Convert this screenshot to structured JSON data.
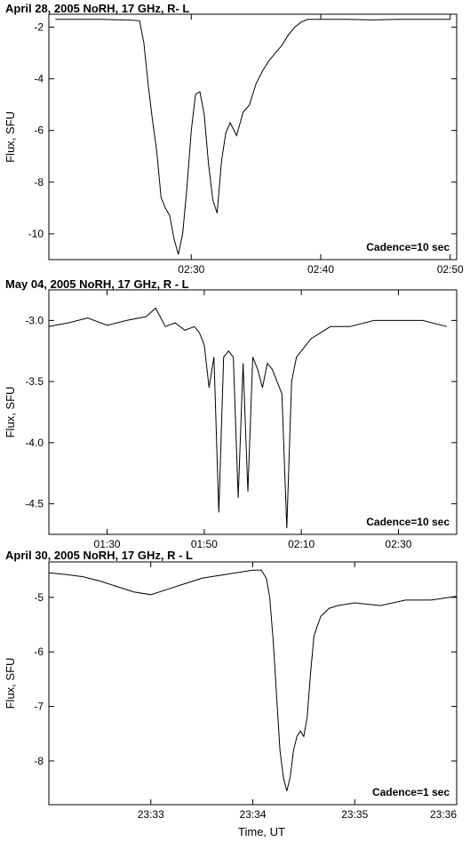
{
  "figure": {
    "xlabel": "Time, UT"
  },
  "chart_data": [
    {
      "type": "line",
      "title": "April 28, 2005 NoRH, 17 GHz, R- L",
      "ylabel": "Flux, SFU",
      "xlabel": "",
      "annotation": "Cadence=10 sec",
      "ylim": [
        -11.0,
        -1.5
      ],
      "xlim": [
        "02:19:00",
        "02:50:30"
      ],
      "yticks": [
        -2,
        -4,
        -6,
        -8,
        -10
      ],
      "ytick_labels": [
        "-2",
        "-4",
        "-6",
        "-8",
        "-10"
      ],
      "xticks": [
        "02:30:00",
        "02:40:00",
        "02:50:00"
      ],
      "xtick_labels": [
        "02:30",
        "02:40",
        "02:50"
      ],
      "grid": false,
      "line_color": "#000000",
      "series": [
        {
          "x": [
            "02:19:30",
            "02:21:00",
            "02:23:00",
            "02:25:00",
            "02:26:00",
            "02:26:20",
            "02:26:40",
            "02:27:00",
            "02:27:20",
            "02:27:40",
            "02:28:00",
            "02:28:20",
            "02:28:40",
            "02:29:00",
            "02:29:20",
            "02:29:40",
            "02:30:00",
            "02:30:20",
            "02:30:40",
            "02:31:00",
            "02:31:20",
            "02:31:40",
            "02:32:00",
            "02:32:20",
            "02:32:40",
            "02:33:00",
            "02:33:30",
            "02:34:00",
            "02:34:30",
            "02:35:00",
            "02:35:30",
            "02:36:00",
            "02:36:30",
            "02:37:00",
            "02:37:30",
            "02:38:00",
            "02:38:30",
            "02:39:00",
            "02:40:00",
            "02:42:00",
            "02:44:00",
            "02:46:00",
            "02:48:00",
            "02:50:00"
          ],
          "y": [
            -1.7,
            -1.7,
            -1.7,
            -1.72,
            -1.75,
            -2.6,
            -4.2,
            -5.6,
            -6.8,
            -8.6,
            -9.0,
            -9.3,
            -10.2,
            -10.8,
            -10.0,
            -8.2,
            -6.0,
            -4.6,
            -4.5,
            -5.4,
            -7.3,
            -8.7,
            -9.2,
            -7.2,
            -6.1,
            -5.7,
            -6.2,
            -5.3,
            -5.0,
            -4.2,
            -3.7,
            -3.3,
            -3.0,
            -2.7,
            -2.3,
            -2.0,
            -1.8,
            -1.7,
            -1.7,
            -1.7,
            -1.72,
            -1.7,
            -1.7,
            -1.7
          ]
        }
      ]
    },
    {
      "type": "line",
      "title": "May 04, 2005 NoRH, 17 GHz, R - L",
      "ylabel": "Flux, SFU",
      "xlabel": "",
      "annotation": "Cadence=10 sec",
      "ylim": [
        -4.75,
        -2.75
      ],
      "xlim": [
        "01:18:00",
        "02:42:00"
      ],
      "yticks": [
        -3.0,
        -3.5,
        -4.0,
        -4.5
      ],
      "ytick_labels": [
        "-3.0",
        "-3.5",
        "-4.0",
        "-4.5"
      ],
      "xticks": [
        "01:30:00",
        "01:50:00",
        "02:10:00",
        "02:30:00"
      ],
      "xtick_labels": [
        "01:30",
        "01:50",
        "02:10",
        "02:30"
      ],
      "grid": false,
      "line_color": "#000000",
      "series": [
        {
          "x": [
            "01:18:00",
            "01:22:00",
            "01:26:00",
            "01:30:00",
            "01:34:00",
            "01:38:00",
            "01:40:00",
            "01:42:00",
            "01:44:00",
            "01:46:00",
            "01:48:00",
            "01:49:00",
            "01:50:00",
            "01:51:00",
            "01:52:00",
            "01:53:00",
            "01:54:00",
            "01:55:00",
            "01:56:00",
            "01:57:00",
            "01:58:00",
            "01:59:00",
            "02:00:00",
            "02:01:00",
            "02:02:00",
            "02:03:00",
            "02:04:00",
            "02:05:00",
            "02:06:00",
            "02:07:00",
            "02:08:00",
            "02:09:00",
            "02:10:00",
            "02:12:00",
            "02:14:00",
            "02:16:00",
            "02:20:00",
            "02:25:00",
            "02:30:00",
            "02:35:00",
            "02:40:00"
          ],
          "y": [
            -3.05,
            -3.02,
            -2.98,
            -3.04,
            -3.0,
            -2.97,
            -2.9,
            -3.05,
            -3.02,
            -3.08,
            -3.05,
            -3.1,
            -3.2,
            -3.55,
            -3.3,
            -4.57,
            -3.3,
            -3.25,
            -3.3,
            -4.45,
            -3.35,
            -4.4,
            -3.3,
            -3.4,
            -3.55,
            -3.35,
            -3.4,
            -3.5,
            -3.6,
            -4.7,
            -3.5,
            -3.3,
            -3.25,
            -3.15,
            -3.1,
            -3.05,
            -3.05,
            -3.0,
            -3.0,
            -3.0,
            -3.05
          ]
        }
      ]
    },
    {
      "type": "line",
      "title": "April 30, 2005 NoRH, 17 GHz, R - L",
      "ylabel": "Flux, SFU",
      "xlabel": "Time, UT",
      "annotation": "Cadence=1 sec",
      "ylim": [
        -8.8,
        -4.35
      ],
      "xlim": [
        "23:32:00",
        "23:36:00"
      ],
      "yticks": [
        -5,
        -6,
        -7,
        -8
      ],
      "ytick_labels": [
        "-5",
        "-6",
        "-7",
        "-8"
      ],
      "xticks": [
        "23:33:00",
        "23:34:00",
        "23:35:00",
        "23:36:00"
      ],
      "xtick_labels": [
        "23:33",
        "23:34",
        "23:35",
        "23:36"
      ],
      "grid": false,
      "line_color": "#000000",
      "series": [
        {
          "x": [
            "23:32:00",
            "23:32:10",
            "23:32:20",
            "23:32:30",
            "23:32:40",
            "23:32:50",
            "23:33:00",
            "23:33:10",
            "23:33:20",
            "23:33:30",
            "23:33:40",
            "23:33:50",
            "23:34:00",
            "23:34:05",
            "23:34:08",
            "23:34:10",
            "23:34:12",
            "23:34:14",
            "23:34:16",
            "23:34:18",
            "23:34:20",
            "23:34:22",
            "23:34:24",
            "23:34:26",
            "23:34:28",
            "23:34:30",
            "23:34:32",
            "23:34:34",
            "23:34:36",
            "23:34:40",
            "23:34:45",
            "23:34:50",
            "23:35:00",
            "23:35:15",
            "23:35:30",
            "23:35:45",
            "23:36:00"
          ],
          "y": [
            -4.55,
            -4.58,
            -4.62,
            -4.7,
            -4.8,
            -4.9,
            -4.95,
            -4.85,
            -4.75,
            -4.65,
            -4.6,
            -4.55,
            -4.5,
            -4.5,
            -4.65,
            -5.0,
            -5.8,
            -6.8,
            -7.8,
            -8.3,
            -8.55,
            -8.3,
            -7.8,
            -7.55,
            -7.45,
            -7.55,
            -7.2,
            -6.4,
            -5.7,
            -5.35,
            -5.2,
            -5.15,
            -5.1,
            -5.15,
            -5.05,
            -5.05,
            -4.98
          ]
        }
      ]
    }
  ]
}
